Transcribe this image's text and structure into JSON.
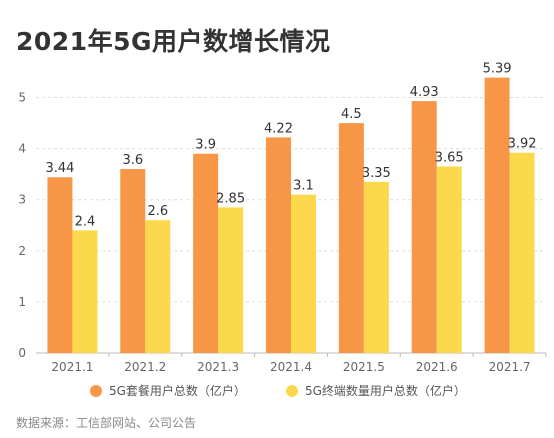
{
  "title": "2021年5G用户数增长情况",
  "source": "数据来源：工信部网站、公司公告",
  "colors": {
    "series1": "#F79646",
    "series2": "#FCD84C",
    "grid": "#dddddd",
    "axis": "#666666"
  },
  "chart_data": {
    "type": "bar",
    "categories": [
      "2021.1",
      "2021.2",
      "2021.3",
      "2021.4",
      "2021.5",
      "2021.6",
      "2021.7"
    ],
    "series": [
      {
        "name": "5G套餐用户总数（亿户）",
        "values": [
          3.44,
          3.6,
          3.9,
          4.22,
          4.5,
          4.93,
          5.39
        ]
      },
      {
        "name": "5G终端数量用户总数（亿户）",
        "values": [
          2.4,
          2.6,
          2.85,
          3.1,
          3.35,
          3.65,
          3.92
        ]
      }
    ],
    "ylim": [
      0,
      5.5
    ],
    "yticks": [
      0,
      1,
      2,
      3,
      4,
      5
    ],
    "grid": true,
    "legend_position": "bottom"
  }
}
